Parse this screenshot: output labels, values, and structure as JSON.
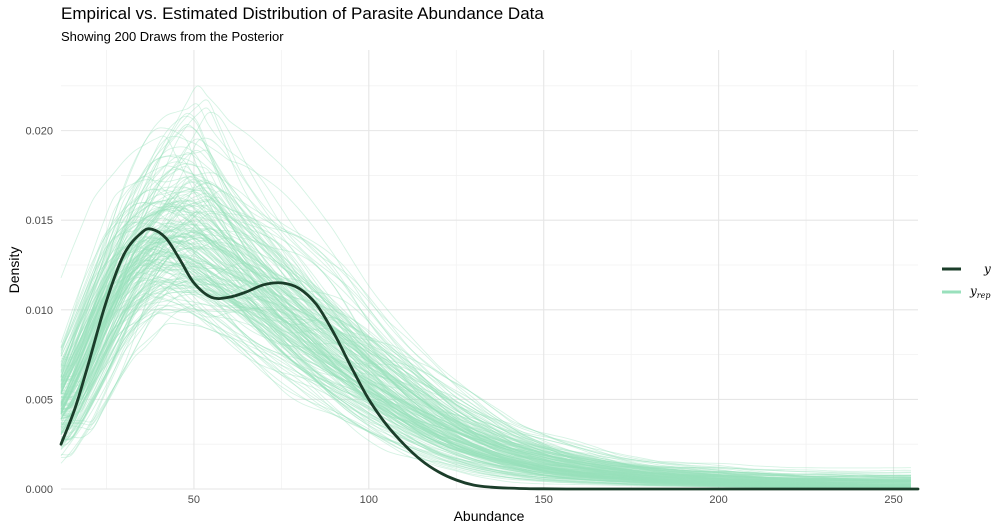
{
  "chart_data": {
    "type": "line",
    "title": "Empirical vs. Estimated Distribution of Parasite Abundance Data",
    "subtitle": "Showing 200 Draws from the Posterior",
    "xlabel": "Abundance",
    "ylabel": "Density",
    "xlim": [
      12,
      257
    ],
    "ylim": [
      0,
      0.0245
    ],
    "x_ticks": [
      50,
      100,
      150,
      200,
      250
    ],
    "y_ticks": [
      0.0,
      0.005,
      0.01,
      0.015,
      0.02
    ],
    "y_tick_labels": [
      "0.000",
      "0.005",
      "0.010",
      "0.015",
      "0.020"
    ],
    "grid": true,
    "legend_position": "right",
    "legend": [
      {
        "key": "y",
        "label": "y",
        "subscript": "",
        "color": "#1b3d2a"
      },
      {
        "key": "yrep",
        "label": "y",
        "subscript": "rep",
        "color": "#99e0bc"
      }
    ],
    "series": [
      {
        "name": "y",
        "color": "#1b3d2a",
        "x": [
          12,
          16,
          20,
          25,
          30,
          35,
          38,
          42,
          46,
          50,
          55,
          60,
          65,
          70,
          75,
          80,
          85,
          90,
          95,
          100,
          105,
          110,
          115,
          120,
          125,
          130,
          135,
          140,
          145,
          150,
          160,
          170,
          180,
          200,
          220,
          257
        ],
        "y": [
          0.0025,
          0.0045,
          0.0071,
          0.0105,
          0.0131,
          0.0143,
          0.0145,
          0.014,
          0.0128,
          0.0115,
          0.0107,
          0.0107,
          0.011,
          0.0114,
          0.0115,
          0.0112,
          0.0103,
          0.0087,
          0.0068,
          0.005,
          0.0036,
          0.0025,
          0.0016,
          0.00095,
          0.0005,
          0.00022,
          0.0001,
          5e-05,
          2e-05,
          1e-05,
          0.0,
          0.0,
          0.0,
          0.0,
          0.0,
          0.0
        ]
      },
      {
        "name": "yrep",
        "color": "#99e0bc",
        "draws": 200,
        "x": [
          12,
          20,
          30,
          40,
          50,
          60,
          70,
          80,
          90,
          100,
          110,
          120,
          130,
          140,
          150,
          160,
          170,
          180,
          190,
          200,
          210,
          220,
          230,
          240,
          250,
          257
        ],
        "y_mean": [
          0.004,
          0.0075,
          0.0118,
          0.0138,
          0.0136,
          0.0122,
          0.0106,
          0.009,
          0.0075,
          0.006,
          0.0046,
          0.0034,
          0.0025,
          0.0018,
          0.0013,
          0.001,
          0.0008,
          0.0006,
          0.0005,
          0.0004,
          0.0003,
          0.00025,
          0.0002,
          0.00015,
          0.0001,
          0.0001
        ],
        "y_min": [
          0.0008,
          0.0025,
          0.0055,
          0.0075,
          0.0078,
          0.0072,
          0.006,
          0.0045,
          0.003,
          0.0018,
          0.0009,
          0.0004,
          0.0001,
          0.0,
          0.0,
          0.0,
          0.0,
          0.0,
          0.0,
          0.0,
          0.0,
          0.0,
          0.0,
          0.0,
          0.0,
          0.0
        ],
        "y_max": [
          0.0085,
          0.0135,
          0.0185,
          0.0215,
          0.024,
          0.02,
          0.0175,
          0.0155,
          0.0135,
          0.011,
          0.009,
          0.007,
          0.0055,
          0.0042,
          0.0035,
          0.0028,
          0.0022,
          0.0018,
          0.0016,
          0.0015,
          0.0013,
          0.0012,
          0.0012,
          0.0012,
          0.0012,
          0.0012
        ]
      }
    ]
  }
}
